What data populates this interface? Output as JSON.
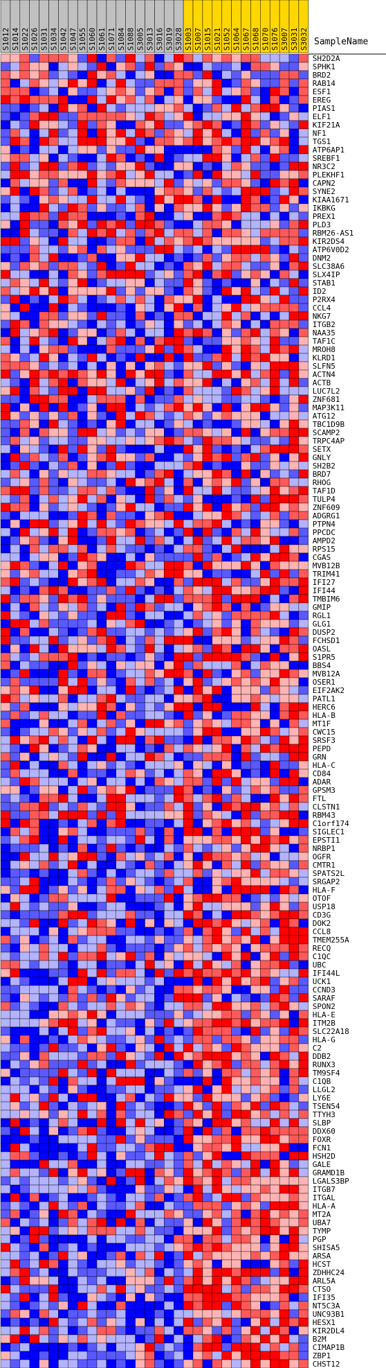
{
  "chart_data": {
    "type": "heatmap",
    "header": "SampleName",
    "samples": [
      "S1012",
      "S1014",
      "S1022",
      "S1026",
      "S1031",
      "S1034",
      "S1042",
      "S1047",
      "S1055",
      "S1060",
      "S1061",
      "S1071",
      "S1084",
      "S1088",
      "S3005",
      "S3013",
      "S3016",
      "S3019",
      "S3028",
      "S1003",
      "S1007",
      "S1015",
      "S1021",
      "S1052",
      "S1064",
      "S1067",
      "S1068",
      "S1070",
      "S1076",
      "S3007",
      "S3031",
      "S3032"
    ],
    "group_highlight": {
      "gray": [
        0,
        18
      ],
      "gold": [
        19,
        31
      ]
    },
    "colors": {
      "gray_bg": "#c0c0c0",
      "gold_bg": "#ffd700",
      "low": "#0000ff",
      "mid": "#ffffff",
      "high": "#ff0000"
    },
    "genes": [
      "SH2D2A",
      "SPHK1",
      "BRD2",
      "RAB14",
      "ESF1",
      "EREG",
      "PIAS1",
      "ELF1",
      "KIF21A",
      "NF1",
      "TGS1",
      "ATP6AP1",
      "SREBF1",
      "NR3C2",
      "PLEKHF1",
      "CAPN2",
      "SYNE2",
      "KIAA1671",
      "IKBKG",
      "PREX1",
      "PLD3",
      "RBM26-AS1",
      "KIR2DS4",
      "ATP6V0D2",
      "DNM2",
      "SLC38A6",
      "SLX4IP",
      "STAB1",
      "ID2",
      "P2RX4",
      "CCL4",
      "NKG7",
      "ITGB2",
      "NAA35",
      "TAF1C",
      "MROH8",
      "KLRD1",
      "SLFN5",
      "ACTN4",
      "ACTB",
      "LUC7L2",
      "ZNF681",
      "MAP3K11",
      "ATG12",
      "TBC1D9B",
      "SCAMP2",
      "TRPC4AP",
      "SETX",
      "GNLY",
      "SH2B2",
      "BRD7",
      "RHOG",
      "TAF1D",
      "TULP4",
      "ZNF609",
      "ADGRG1",
      "PTPN4",
      "PPCDC",
      "AMPD2",
      "RPS15",
      "CGAS",
      "MVB12B",
      "TRIM41",
      "IFI27",
      "IFI44",
      "TMBIM6",
      "GMIP",
      "RGL1",
      "GLG1",
      "DUSP2",
      "FCHSD1",
      "OASL",
      "S1PR5",
      "BBS4",
      "MVB12A",
      "OSER1",
      "EIF2AK2",
      "PATL1",
      "HERC6",
      "HLA-B",
      "MT1F",
      "CWC15",
      "SRSF3",
      "PEPD",
      "GRN",
      "HLA-C",
      "CD84",
      "ADAR",
      "GPSM3",
      "FTL",
      "CLSTN1",
      "RBM43",
      "C1orf174",
      "SIGLEC1",
      "EPSTI1",
      "NRBP1",
      "OGFR",
      "CMTR1",
      "SPATS2L",
      "SRGAP2",
      "HLA-F",
      "OTOF",
      "USP18",
      "CD3G",
      "DOK2",
      "CCL8",
      "TMEM255A",
      "RECQ",
      "C1QC",
      "UBC",
      "IFI44L",
      "UCK1",
      "CCND3",
      "SARAF",
      "SPON2",
      "HLA-E",
      "ITM2B",
      "SLC22A18",
      "HLA-G",
      "C2",
      "DDB2",
      "RUNX3",
      "TM9SF4",
      "C1QB",
      "LLGL2",
      "LY6E",
      "TSEN54",
      "TTYH3",
      "SLBP",
      "DDX60",
      "FOXR",
      "FCN1",
      "HSH2D",
      "GALE",
      "GRAMD1B",
      "LGALS3BP",
      "ITGB7",
      "ITGAL",
      "HLA-A",
      "MT2A",
      "UBA7",
      "TYMP",
      "PGP",
      "SHISA5",
      "ARSA",
      "HCST",
      "ZDHHC24",
      "ARL5A",
      "CTSO",
      "IFI35",
      "NT5C3A",
      "UNC93B1",
      "HESX1",
      "KIR2DL4",
      "B2M",
      "CIMAP1B",
      "ZBP1",
      "CHST12"
    ]
  }
}
